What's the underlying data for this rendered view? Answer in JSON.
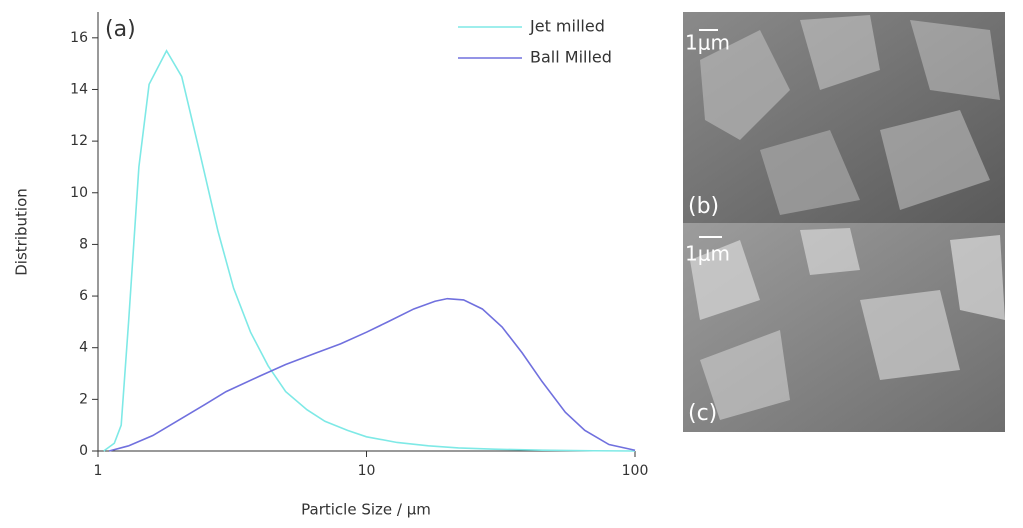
{
  "chart_data": {
    "type": "line",
    "annotation": "(a)",
    "x_label": "Particle Size / μm",
    "y_label": "Distribution",
    "xscale": "log",
    "xlim": [
      1,
      100
    ],
    "xticks": [
      1,
      10,
      100
    ],
    "ylim": [
      0,
      17
    ],
    "yticks": [
      0,
      2,
      4,
      6,
      8,
      10,
      12,
      14,
      16
    ],
    "legend": "upper right",
    "series": [
      {
        "name": "Jet milled",
        "color": "#7ee9e6",
        "x": [
          1.05,
          1.15,
          1.22,
          1.3,
          1.42,
          1.55,
          1.8,
          2.05,
          2.4,
          2.8,
          3.2,
          3.7,
          4.3,
          5,
          6,
          7,
          8.5,
          10,
          13,
          17,
          22,
          30,
          45,
          70,
          100
        ],
        "values": [
          0,
          0.3,
          1,
          5,
          11,
          14.2,
          15.5,
          14.5,
          11.5,
          8.5,
          6.3,
          4.6,
          3.3,
          2.3,
          1.6,
          1.15,
          0.8,
          0.55,
          0.33,
          0.2,
          0.12,
          0.07,
          0.03,
          0.01,
          0
        ]
      },
      {
        "name": "Ball Milled",
        "color": "#7070de",
        "x": [
          1.1,
          1.3,
          1.6,
          2,
          2.5,
          3,
          4,
          5,
          6.5,
          8,
          10,
          12,
          15,
          18,
          20,
          23,
          27,
          32,
          38,
          45,
          55,
          65,
          80,
          100
        ],
        "values": [
          0,
          0.2,
          0.6,
          1.2,
          1.8,
          2.3,
          2.9,
          3.35,
          3.8,
          4.15,
          4.6,
          5.0,
          5.5,
          5.8,
          5.9,
          5.85,
          5.5,
          4.8,
          3.8,
          2.7,
          1.5,
          0.8,
          0.25,
          0.03
        ]
      }
    ]
  },
  "images": [
    {
      "scale": "1μm",
      "label": "(b)"
    },
    {
      "scale": "1μm",
      "label": "(c)"
    }
  ]
}
